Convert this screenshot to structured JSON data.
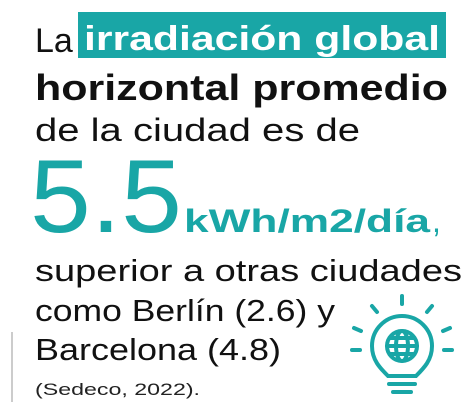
{
  "intro": "La",
  "highlight": "irradiación global",
  "bold": "horizontal promedio",
  "line3": "de la ciudad es de",
  "value": "5.5",
  "unit": "kWh/m2/día",
  "comma": ",",
  "body": [
    "superior a otras ciudades",
    "como Berlín (2.6) y",
    "Barcelona (4.8)"
  ],
  "source": "(Sedeco, 2022)."
}
